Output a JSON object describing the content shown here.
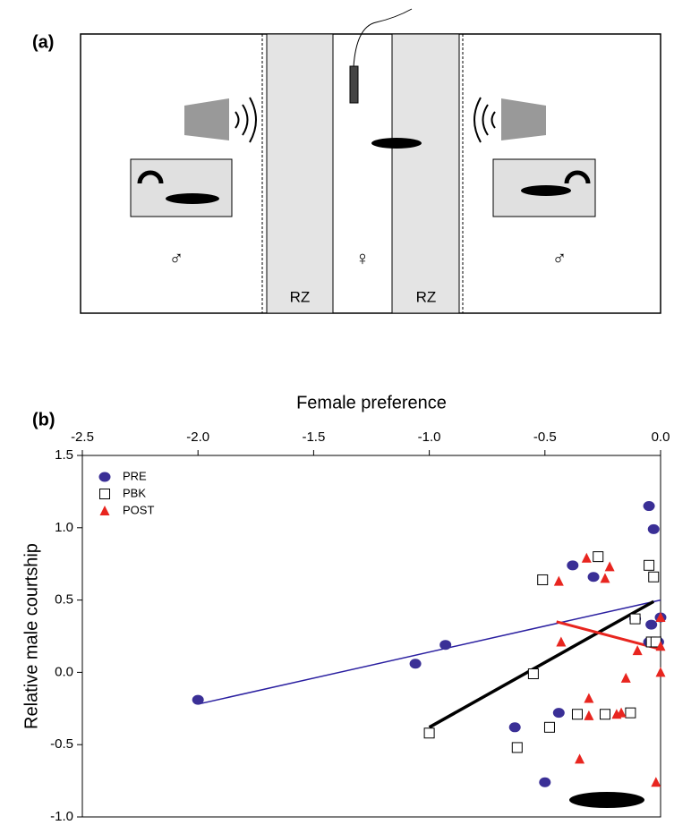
{
  "panel_a": {
    "label": "(a)",
    "zones": [
      "RZ",
      "RZ"
    ],
    "left_symbol": "♂",
    "center_symbol": "♀",
    "right_symbol": "♂"
  },
  "chart_data": {
    "type": "scatter",
    "panel_label": "(b)",
    "xlabel": "Female preference",
    "ylabel": "Relative male courtship",
    "xlim": [
      -2.5,
      0
    ],
    "ylim": [
      -1,
      1.5
    ],
    "xticks": [
      -2.5,
      {
        "value": -2,
        "label": "-2.0"
      },
      -1.5,
      {
        "value": -1,
        "label": "-1.0"
      },
      -0.5,
      {
        "value": 0,
        "label": "0.0"
      }
    ],
    "yticks": [
      -0.5,
      {
        "value": -1,
        "label": "-1.0"
      },
      {
        "value": 0,
        "label": "0.0"
      },
      0.5,
      {
        "value": 1,
        "label": "1.0"
      },
      1.5
    ],
    "legend": "upper left",
    "series": [
      {
        "name": "PRE",
        "color": "#3a2f96",
        "marker": "circle",
        "x": [
          -2.0,
          -1.06,
          -0.93,
          -0.63,
          -0.5,
          -0.44,
          -0.38,
          -0.29,
          -0.11,
          -0.05,
          -0.03,
          -0.05,
          -0.01,
          -0.04,
          0.0
        ],
        "values": [
          -0.19,
          0.06,
          0.19,
          -0.38,
          -0.76,
          -0.28,
          0.74,
          0.66,
          0.37,
          1.15,
          0.99,
          0.21,
          0.21,
          0.33,
          0.38
        ]
      },
      {
        "name": "PBK",
        "color": "#000000",
        "marker": "square",
        "x": [
          -1.0,
          -0.62,
          -0.55,
          -0.51,
          -0.48,
          -0.36,
          -0.27,
          -0.24,
          -0.13,
          -0.11,
          -0.05,
          -0.03,
          -0.04,
          -0.02
        ],
        "values": [
          -0.42,
          -0.52,
          -0.01,
          0.64,
          -0.38,
          -0.29,
          0.8,
          -0.29,
          -0.28,
          0.37,
          0.74,
          0.66,
          0.21,
          0.21
        ]
      },
      {
        "name": "POST",
        "color": "#e8251f",
        "marker": "triangle",
        "x": [
          -0.44,
          -0.32,
          -0.43,
          -0.35,
          -0.31,
          -0.31,
          -0.24,
          -0.22,
          -0.19,
          -0.17,
          -0.15,
          -0.1,
          -0.02,
          0.0,
          0.0,
          0.0
        ],
        "values": [
          0.63,
          0.79,
          0.21,
          -0.6,
          -0.18,
          -0.3,
          0.65,
          0.73,
          -0.29,
          -0.28,
          -0.04,
          0.15,
          -0.76,
          0.0,
          0.18,
          0.38
        ]
      }
    ],
    "fit_lines": [
      {
        "color": "#2a1fa0",
        "width": 1.5,
        "x": [
          -2.0,
          0.0
        ],
        "values": [
          -0.22,
          0.5
        ]
      },
      {
        "color": "#000000",
        "width": 3.5,
        "x": [
          -1.0,
          -0.03
        ],
        "values": [
          -0.38,
          0.49
        ]
      },
      {
        "color": "#e8251f",
        "width": 3,
        "x": [
          -0.45,
          0.0
        ],
        "values": [
          0.35,
          0.16
        ]
      }
    ]
  }
}
